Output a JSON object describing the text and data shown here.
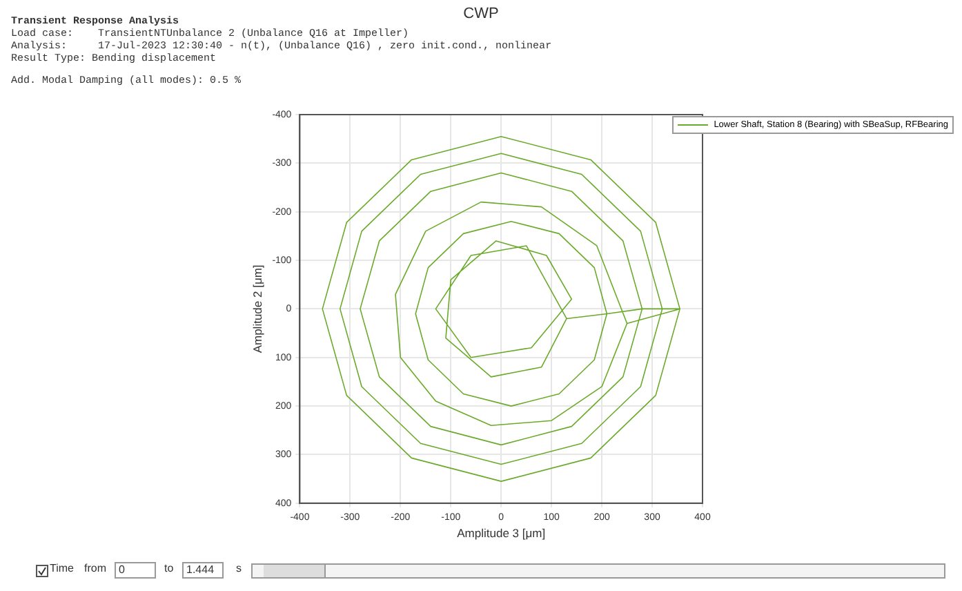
{
  "chart_data": {
    "type": "line",
    "title": "CWP",
    "subtitle": "Transient Response Analysis",
    "xlabel": "Amplitude 3 [μm]",
    "ylabel": "Amplitude 2 [μm]",
    "annotations": [
      "Load case:    TransientNTUnbalance 2 (Unbalance Q16 at Impeller)",
      "Analysis:     17-Jul-2023 12:30:40 - n(t), (Unbalance Q16) , zero init.cond., nonlinear",
      "Result Type: Bending displacement",
      "Add. Modal Damping (all modes): 0.5 %",
      "Time",
      "from",
      "0",
      "to",
      "1.444",
      "s"
    ],
    "xlim": [
      -400,
      400
    ],
    "ylim": [
      400,
      -400
    ],
    "xticks": [
      -400,
      -300,
      -200,
      -100,
      0,
      100,
      200,
      300,
      400
    ],
    "yticks": [
      -400,
      -300,
      -200,
      -100,
      0,
      100,
      200,
      300,
      400
    ],
    "grid": true,
    "legend": "top right",
    "marker": "none",
    "line_style": "solid",
    "series": [
      {
        "name": "Lower Shaft, Station 8 (Bearing) with SBeaSup, RFBearing",
        "color": "#6aaa2a",
        "x": [
          130,
          80,
          -20,
          -110,
          -100,
          -10,
          90,
          140,
          60,
          -60,
          -130,
          -60,
          50,
          130,
          210,
          185,
          115,
          20,
          -75,
          -145,
          -170,
          -145,
          -75,
          20,
          115,
          185,
          210,
          280,
          242,
          140,
          0,
          -140,
          -242,
          -280,
          -242,
          -140,
          0,
          140,
          242,
          280,
          320,
          277,
          160,
          0,
          -160,
          -277,
          -320,
          -277,
          -160,
          0,
          160,
          277,
          320,
          355,
          307,
          178,
          0,
          -178,
          -307,
          -355,
          -307,
          -178,
          0,
          178,
          307,
          355,
          250,
          200,
          100,
          -20,
          -130,
          -200,
          -210,
          -150,
          -40,
          80,
          190,
          250
        ],
        "values": [
          20,
          120,
          140,
          60,
          -60,
          -140,
          -110,
          -20,
          80,
          100,
          0,
          -110,
          -130,
          20,
          10,
          105,
          175,
          200,
          175,
          105,
          10,
          -85,
          -155,
          -180,
          -155,
          -85,
          10,
          0,
          140,
          242,
          280,
          242,
          140,
          0,
          -140,
          -242,
          -280,
          -242,
          -140,
          0,
          0,
          160,
          277,
          320,
          277,
          160,
          0,
          -160,
          -277,
          -320,
          -277,
          -160,
          0,
          0,
          178,
          307,
          355,
          307,
          178,
          0,
          -178,
          -307,
          -355,
          -307,
          -178,
          0,
          30,
          160,
          230,
          240,
          190,
          100,
          -30,
          -160,
          -220,
          -210,
          -130,
          30
        ]
      }
    ]
  }
}
